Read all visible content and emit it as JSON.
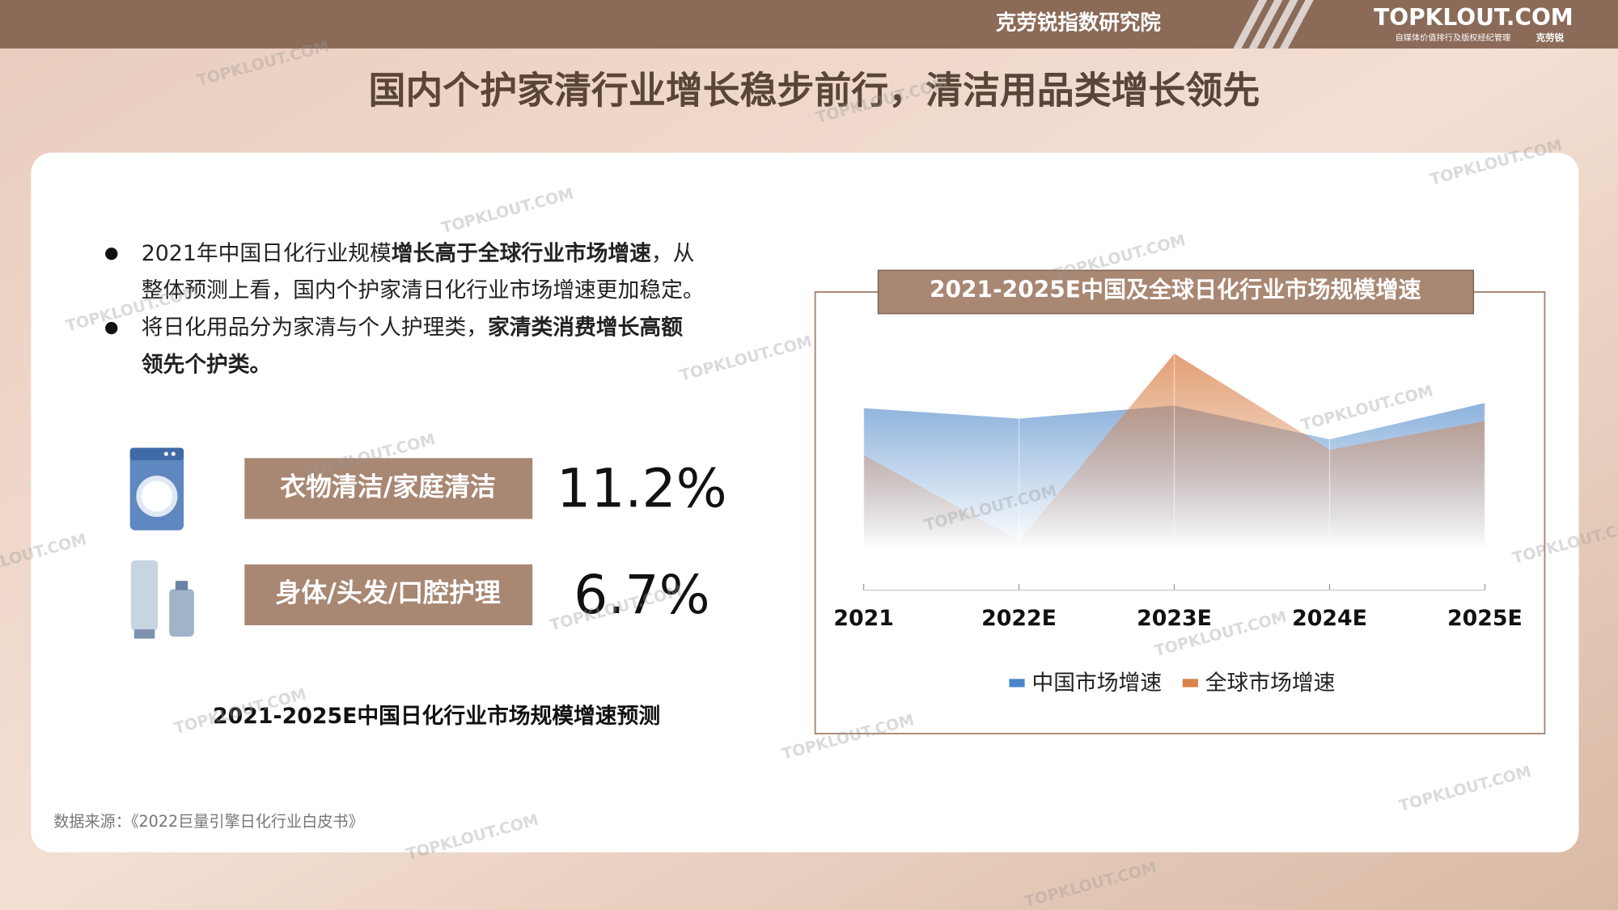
{
  "header": {
    "brand": "克劳锐指数研究院",
    "logo": "TOPKLOUT.COM",
    "logo_tagline": "自媒体价值排行及版权经纪管理",
    "logo_name": "克劳锐"
  },
  "watermark": "TOPKLOUT.COM",
  "title": "国内个护家清行业增长稳步前行，清洁用品类增长领先",
  "bullets": [
    {
      "lines": [
        [
          {
            "text": "2021年中国日化行业规模"
          },
          {
            "text": "增长高于全球行业市场增速",
            "bold": true
          },
          {
            "text": "，从"
          }
        ],
        [
          {
            "text": "整体预测上看，国内个护家清日化行业市场增速更加稳定。"
          }
        ]
      ]
    },
    {
      "lines": [
        [
          {
            "text": "将日化用品分为家清与个人护理类，"
          },
          {
            "text": "家清类消费增长高额",
            "bold": true
          }
        ],
        [
          {
            "text": "领先个护类。",
            "bold": true
          }
        ]
      ]
    }
  ],
  "stats": [
    {
      "label": "衣物清洁/家庭清洁",
      "value": "11.2%"
    },
    {
      "label": "身体/头发/口腔护理",
      "value": "6.7%"
    }
  ],
  "stats_caption": "2021-2025E中国日化行业市场规模增速预测",
  "source": "数据来源：《2022巨量引擎日化行业白皮书》",
  "chart_data": {
    "type": "area",
    "title": "2021-2025E中国及全球日化行业市场规模增速",
    "categories": [
      "2021",
      "2022E",
      "2023E",
      "2024E",
      "2025E"
    ],
    "series": [
      {
        "name": "中国市场增速",
        "color": "#4a86c8",
        "values": [
          70,
          66,
          71,
          58,
          72
        ]
      },
      {
        "name": "全球市场增速",
        "color": "#d9824a",
        "values": [
          52,
          19,
          91,
          54,
          65
        ]
      }
    ],
    "ylim": [
      0,
      100
    ],
    "legend": "bottom"
  }
}
